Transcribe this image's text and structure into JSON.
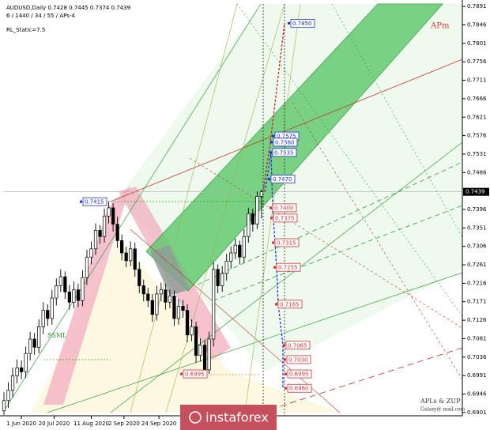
{
  "header": {
    "symbol_line": "AUDUSD,Daily 0.7428 0.7445 0.7374 0.7439",
    "settings_line": "6 / 1440 / 34 / 55 / APs-4",
    "indicator_line": "RL_Static=7.5"
  },
  "chart_data": {
    "type": "candlestick",
    "open": [
      0.6905,
      0.693,
      0.6955,
      0.699,
      0.701,
      0.7,
      0.7045,
      0.708,
      0.706,
      0.711,
      0.715,
      0.713,
      0.718,
      0.721,
      0.7232,
      0.7195,
      0.717,
      0.72,
      0.7174,
      0.723,
      0.728,
      0.73,
      0.7345,
      0.733,
      0.738,
      0.74,
      0.736,
      0.732,
      0.729,
      0.7271,
      0.73,
      0.725,
      0.721,
      0.719,
      0.7174,
      0.714,
      0.719,
      0.72,
      0.717,
      0.7185,
      0.713,
      0.716,
      0.715,
      0.709,
      0.711,
      0.704,
      0.7065,
      0.7005,
      0.708,
      0.725,
      0.721,
      0.724,
      0.727,
      0.729,
      0.7309,
      0.728,
      0.733,
      0.7386,
      0.736,
      0.7428
    ],
    "high": [
      0.695,
      0.6975,
      0.701,
      0.703,
      0.7028,
      0.7062,
      0.7098,
      0.7095,
      0.7128,
      0.717,
      0.7165,
      0.72,
      0.7228,
      0.725,
      0.7245,
      0.7212,
      0.722,
      0.7215,
      0.7248,
      0.7298,
      0.7318,
      0.7362,
      0.7358,
      0.7398,
      0.7415,
      0.7412,
      0.7378,
      0.7335,
      0.7305,
      0.7318,
      0.7315,
      0.7268,
      0.7225,
      0.7205,
      0.719,
      0.721,
      0.7218,
      0.7215,
      0.72,
      0.7198,
      0.7178,
      0.7175,
      0.7165,
      0.7128,
      0.7122,
      0.7082,
      0.7078,
      0.7098,
      0.7268,
      0.7262,
      0.7258,
      0.7288,
      0.7306,
      0.7325,
      0.732,
      0.7348,
      0.74,
      0.7398,
      0.744,
      0.7445
    ],
    "low": [
      0.6895,
      0.6912,
      0.6938,
      0.6972,
      0.6982,
      0.6985,
      0.7028,
      0.7042,
      0.7045,
      0.7092,
      0.7112,
      0.7115,
      0.7162,
      0.7195,
      0.7178,
      0.7152,
      0.7155,
      0.7158,
      0.716,
      0.7212,
      0.7262,
      0.7285,
      0.7312,
      0.7315,
      0.7362,
      0.7342,
      0.7302,
      0.7272,
      0.7255,
      0.7258,
      0.7232,
      0.7192,
      0.7172,
      0.7158,
      0.7122,
      0.7125,
      0.7172,
      0.7152,
      0.7155,
      0.7112,
      0.7115,
      0.7132,
      0.7072,
      0.7075,
      0.7022,
      0.7025,
      0.6991,
      0.6995,
      0.7062,
      0.7192,
      0.7195,
      0.7222,
      0.7252,
      0.7275,
      0.7262,
      0.7265,
      0.7315,
      0.7342,
      0.7348,
      0.7374
    ],
    "close": [
      0.693,
      0.6955,
      0.699,
      0.701,
      0.7,
      0.7045,
      0.708,
      0.706,
      0.711,
      0.715,
      0.713,
      0.718,
      0.721,
      0.7232,
      0.7195,
      0.717,
      0.72,
      0.7174,
      0.723,
      0.728,
      0.73,
      0.7345,
      0.733,
      0.738,
      0.74,
      0.736,
      0.732,
      0.729,
      0.7271,
      0.73,
      0.725,
      0.721,
      0.719,
      0.7174,
      0.714,
      0.719,
      0.72,
      0.717,
      0.7185,
      0.713,
      0.716,
      0.715,
      0.709,
      0.711,
      0.704,
      0.7065,
      0.7005,
      0.708,
      0.725,
      0.721,
      0.724,
      0.727,
      0.729,
      0.7309,
      0.728,
      0.733,
      0.7386,
      0.736,
      0.7428,
      0.7439
    ],
    "up_color": "#ffffff",
    "down_color": "#000000",
    "ylim": [
      0.6893,
      0.7899
    ],
    "yticks": [
      0.7891,
      0.7846,
      0.7801,
      0.7756,
      0.7711,
      0.7666,
      0.7621,
      0.7576,
      0.7531,
      0.7486,
      0.7396,
      0.7351,
      0.7306,
      0.7261,
      0.7216,
      0.7171,
      0.7126,
      0.7081,
      0.7036,
      0.6991,
      0.6946,
      0.6901
    ],
    "xlim": [
      0,
      105
    ],
    "xticks": [
      {
        "value": 4,
        "label": "1 Jun 2020"
      },
      {
        "value": 11.5,
        "label": "20 Jul 2020"
      },
      {
        "value": 20,
        "label": "11 Aug 2020"
      },
      {
        "value": 27.5,
        "label": "2 Sep 2020"
      },
      {
        "value": 35.5,
        "label": "24 Sep 2020"
      }
    ],
    "current_price": 0.7439,
    "levels": [
      {
        "value": 0.785,
        "label": "0.7850",
        "color": "#2030c8"
      },
      {
        "value": 0.7575,
        "label": "0.7575",
        "color": "#2030c8"
      },
      {
        "value": 0.756,
        "label": "0.7560",
        "color": "#2030c8"
      },
      {
        "value": 0.7535,
        "label": "0.7535",
        "color": "#2030c8"
      },
      {
        "value": 0.747,
        "label": "0.7470",
        "color": "#2030c8"
      },
      {
        "value": 0.7415,
        "label": "0.7415",
        "color": "#2030c8"
      },
      {
        "value": 0.74,
        "label": "0.7400",
        "color": "#d03030"
      },
      {
        "value": 0.7375,
        "label": "0.7375",
        "color": "#d03030"
      },
      {
        "value": 0.7315,
        "label": "0.7315",
        "color": "#d03030"
      },
      {
        "value": 0.7255,
        "label": "0.7255",
        "color": "#d03030"
      },
      {
        "value": 0.7165,
        "label": "0.7165",
        "color": "#d03030"
      },
      {
        "value": 0.7065,
        "label": "0.7065",
        "color": "#d03030"
      },
      {
        "value": 0.703,
        "label": "0.7030",
        "color": "#d03030"
      },
      {
        "value": 0.6995,
        "label": "0.6995",
        "color": "#d03030"
      },
      {
        "value": 0.696,
        "label": "0.6960",
        "color": "#d03030"
      },
      {
        "value": 0.6995,
        "label": "0.6995",
        "color": "#d03030"
      }
    ],
    "annotations": [
      {
        "text": "APm",
        "color": "#d9362b"
      },
      {
        "text": "SSML",
        "color": "#2a8a2a"
      },
      {
        "text": "APLs & ZUP",
        "color": "#333333"
      },
      {
        "text": "Galaxy@ mail.com",
        "color": "#333333"
      }
    ]
  },
  "watermark": "instaforex"
}
